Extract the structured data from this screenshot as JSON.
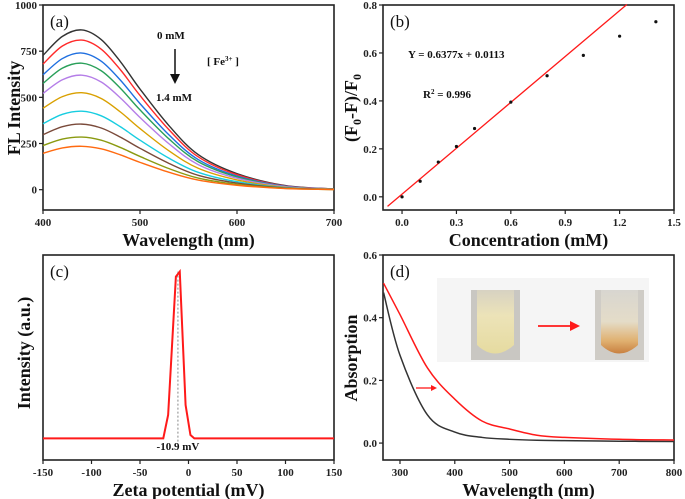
{
  "chart_data": [
    {
      "panel_label": "(a)",
      "type": "line",
      "xlabel": "Wavelength (nm)",
      "ylabel": "FL Intensity",
      "xlim": [
        400,
        700
      ],
      "ylim": [
        -110,
        1000
      ],
      "xticks": [
        400,
        500,
        600,
        700
      ],
      "yticks": [
        0,
        250,
        500,
        750,
        1000
      ],
      "grid": false,
      "annotations": {
        "top": "0 mM",
        "bottom": "1.4 mM",
        "analyte": "[ Fe",
        "analyte_sup": "3+",
        "analyte_end": " ]"
      },
      "x": [
        400,
        420,
        440,
        460,
        480,
        500,
        530,
        560,
        600,
        650,
        700
      ],
      "series": [
        {
          "color": "#333333",
          "values": [
            727,
            830,
            865,
            813,
            692,
            545,
            346,
            190,
            87,
            22,
            4
          ]
        },
        {
          "color": "#ff2a2a",
          "values": [
            680,
            778,
            810,
            761,
            648,
            510,
            324,
            178,
            81,
            20,
            4
          ]
        },
        {
          "color": "#1f6fe0",
          "values": [
            622,
            710,
            740,
            696,
            592,
            466,
            296,
            163,
            74,
            19,
            4
          ]
        },
        {
          "color": "#2aa05a",
          "values": [
            575,
            658,
            685,
            644,
            548,
            432,
            274,
            151,
            69,
            17,
            3
          ]
        },
        {
          "color": "#b57ee8",
          "values": [
            521,
            595,
            620,
            583,
            496,
            391,
            248,
            136,
            62,
            16,
            3
          ]
        },
        {
          "color": "#d9a000",
          "values": [
            441,
            504,
            525,
            494,
            420,
            331,
            210,
            116,
            53,
            13,
            3
          ]
        },
        {
          "color": "#18cde0",
          "values": [
            357,
            408,
            425,
            400,
            340,
            268,
            170,
            94,
            43,
            11,
            2
          ]
        },
        {
          "color": "#7a4a3a",
          "values": [
            298,
            341,
            355,
            334,
            284,
            224,
            142,
            78,
            36,
            9,
            2
          ]
        },
        {
          "color": "#8a9a10",
          "values": [
            239,
            274,
            285,
            268,
            228,
            180,
            114,
            63,
            29,
            7,
            1
          ]
        },
        {
          "color": "#ff6a10",
          "values": [
            197,
            226,
            235,
            221,
            188,
            148,
            94,
            52,
            24,
            6,
            1
          ]
        }
      ]
    },
    {
      "panel_label": "(b)",
      "type": "scatter",
      "xlabel": "Concentration (mM)",
      "ylabel": "(F0-F)/F0",
      "xlim": [
        -0.105,
        1.5
      ],
      "ylim": [
        -0.055,
        0.8
      ],
      "xticks": [
        "0.0",
        "0.3",
        "0.6",
        "0.9",
        "1.2",
        "1.5"
      ],
      "yticks": [
        "0.0",
        "0.2",
        "0.4",
        "0.6",
        "0.8"
      ],
      "grid": false,
      "equation": "Y = 0.6377x + 0.0113",
      "r2_label": "R",
      "r2_value": " = 0.996",
      "fit": {
        "slope": 0.6377,
        "intercept": 0.0113,
        "x_range": [
          -0.08,
          1.24
        ],
        "color": "#ff1a1a"
      },
      "x": [
        0,
        0.1,
        0.2,
        0.3,
        0.4,
        0.6,
        0.8,
        1.0,
        1.2,
        1.4
      ],
      "y": [
        0,
        0.065,
        0.145,
        0.21,
        0.285,
        0.395,
        0.505,
        0.59,
        0.67,
        0.73
      ]
    },
    {
      "panel_label": "(c)",
      "type": "line",
      "xlabel": "Zeta potential (mV)",
      "ylabel": "Intensity (a.u.)",
      "xlim": [
        -150,
        150
      ],
      "ylim": [
        -0.13,
        1.1
      ],
      "xticks": [
        -150,
        -100,
        -50,
        0,
        50,
        100,
        150
      ],
      "grid": false,
      "peak_label": "-10.9 mV",
      "peak_x": -10.9,
      "color": "#ff1a1a",
      "x": [
        -150,
        -26,
        -21,
        -13,
        -9,
        -3,
        2,
        6,
        150
      ],
      "y": [
        0,
        0,
        0.14,
        0.97,
        1.0,
        0.2,
        0.02,
        0,
        0
      ]
    },
    {
      "panel_label": "(d)",
      "type": "line",
      "xlabel": "Wavelength (nm)",
      "ylabel": "Absorption",
      "xlim": [
        269,
        800
      ],
      "ylim": [
        -0.054,
        0.6
      ],
      "xticks": [
        300,
        400,
        500,
        600,
        700,
        800
      ],
      "yticks": [
        "0.0",
        "0.2",
        "0.4",
        "0.6"
      ],
      "grid": false,
      "x": [
        270,
        300,
        350,
        400,
        450,
        500,
        550,
        600,
        700,
        800
      ],
      "series": [
        {
          "color": "#333333",
          "values": [
            0.48,
            0.28,
            0.09,
            0.035,
            0.018,
            0.012,
            0.009,
            0.008,
            0.006,
            0.005
          ]
        },
        {
          "color": "#ff1a1a",
          "values": [
            0.51,
            0.41,
            0.24,
            0.14,
            0.07,
            0.045,
            0.025,
            0.018,
            0.012,
            0.01
          ]
        }
      ],
      "inset": "photos of tubes before and after, arrow between"
    }
  ]
}
